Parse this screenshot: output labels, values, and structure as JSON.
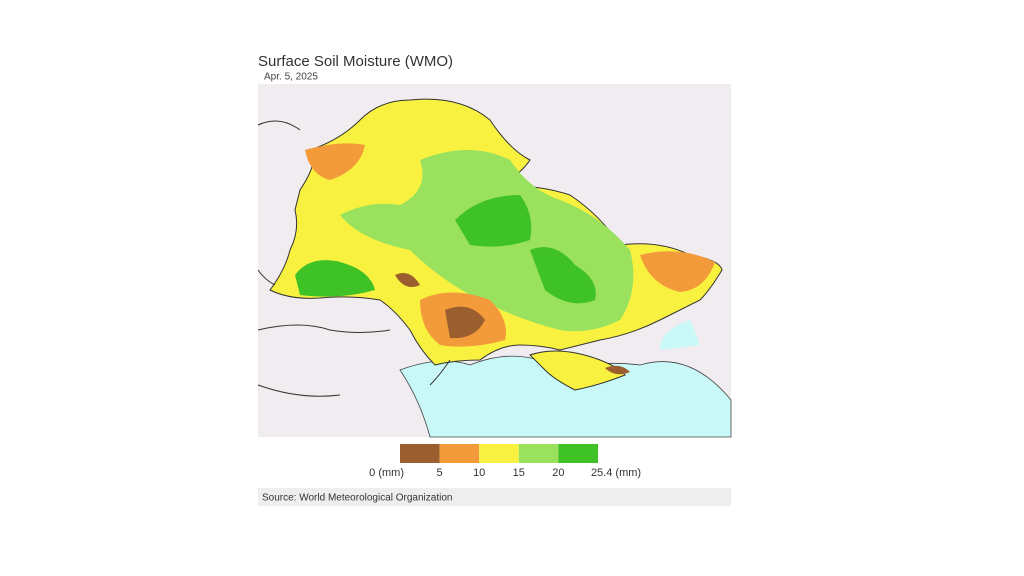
{
  "header": {
    "title": "Surface Soil Moisture (WMO)",
    "date": "Apr. 5, 2025"
  },
  "legend": {
    "colors": [
      "#9b5e2e",
      "#f39a3a",
      "#f8f140",
      "#9ae25e",
      "#3fc225"
    ],
    "labels": [
      "0 (mm)",
      "5",
      "10",
      "15",
      "20",
      "25.4 (mm)"
    ]
  },
  "footer": {
    "source": "Source: World Meteorological Organization"
  }
}
